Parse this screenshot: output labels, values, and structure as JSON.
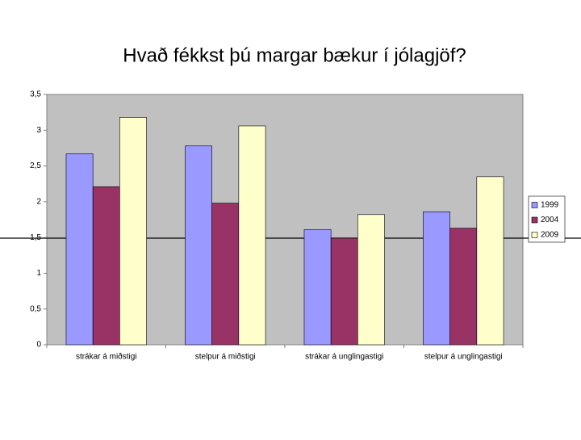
{
  "chart_data": {
    "type": "bar",
    "title": "Hvað fékkst þú margar bækur í jólagjöf?",
    "categories": [
      "strákar á miðstigi",
      "stelpur á miðstigi",
      "strákar á unglingastigi",
      "stelpur á unglingastigi"
    ],
    "series": [
      {
        "name": "1999",
        "color": "#9999ff",
        "values": [
          2.67,
          2.78,
          1.61,
          1.86
        ]
      },
      {
        "name": "2004",
        "color": "#993366",
        "values": [
          2.21,
          1.98,
          1.49,
          1.63
        ]
      },
      {
        "name": "2009",
        "color": "#ffffcc",
        "values": [
          3.18,
          3.06,
          1.82,
          2.35
        ]
      }
    ],
    "ylim": [
      0,
      3.5
    ],
    "yticks": [
      0,
      {
        "value": 0.5,
        "label": "0,5"
      },
      1,
      {
        "value": 1.5,
        "label": "1,5"
      },
      2,
      {
        "value": 2.5,
        "label": "2,5"
      },
      3,
      {
        "value": 3.5,
        "label": "3,5"
      }
    ],
    "legend": "right"
  }
}
